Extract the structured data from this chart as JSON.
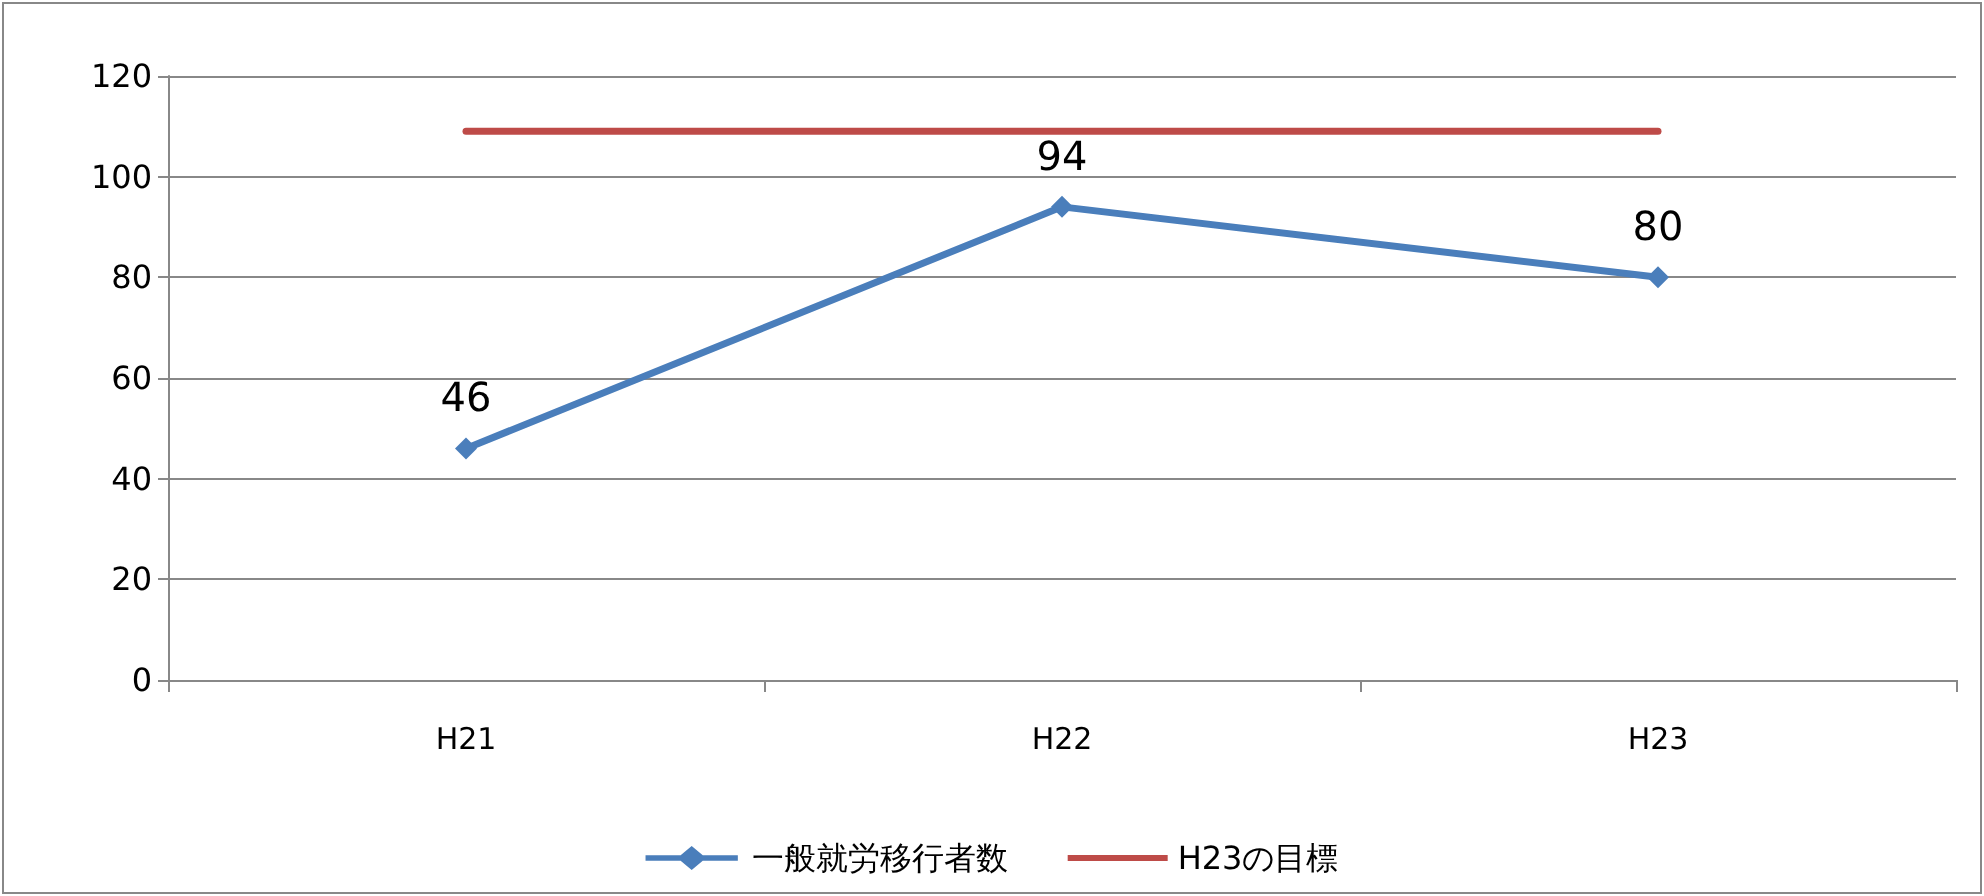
{
  "chart_data": {
    "type": "line",
    "categories": [
      "H21",
      "H22",
      "H23"
    ],
    "series": [
      {
        "name": "一般就労移行者数",
        "color": "#4a7ebb",
        "values": [
          46,
          94,
          80
        ],
        "marker": "diamond",
        "value_labels": [
          "46",
          "94",
          "80"
        ]
      },
      {
        "name": "H23の目標",
        "color": "#be4b48",
        "values": [
          109,
          109,
          109
        ],
        "marker": "none"
      }
    ],
    "ylim": [
      0,
      120
    ],
    "yticks": [
      0,
      20,
      40,
      60,
      80,
      100,
      120
    ],
    "grid": "y",
    "legend": "bottom"
  }
}
